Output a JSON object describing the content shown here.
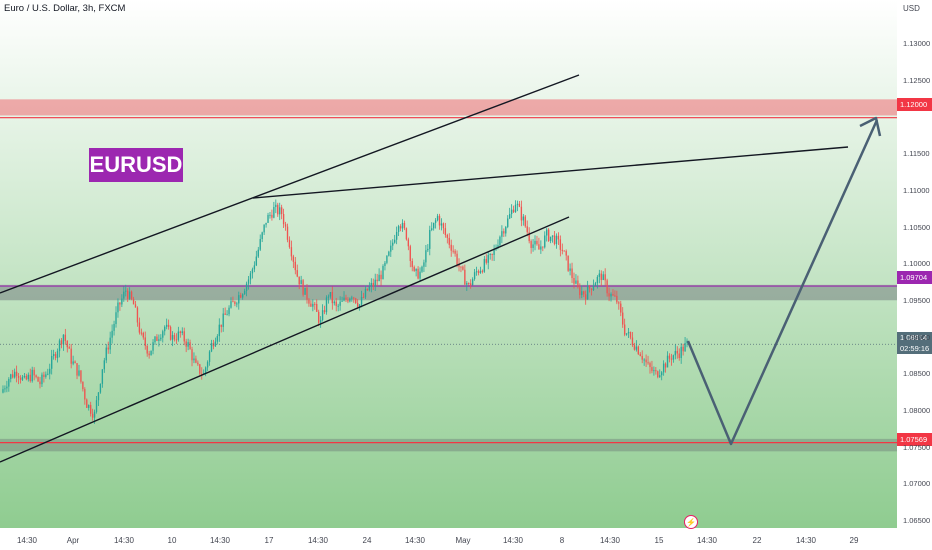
{
  "header": {
    "title": "Euro / U.S. Dollar, 3h, FXCM",
    "currency": "USD"
  },
  "badge": "EURUSD",
  "price_labels": {
    "resistance": "1.12000",
    "mid": "1.09704",
    "current": "1.08914",
    "countdown": "02:59:16",
    "support": "1.07569"
  },
  "colors": {
    "up": "#26a69a",
    "down": "#ef5350",
    "zone_red": "#f23645",
    "zone_purple": "#9c27b0",
    "trend": "#131722",
    "projection": "#4a6074"
  },
  "lightning_icon": "bolt-icon",
  "chart_data": {
    "type": "candlestick",
    "title": "Euro / U.S. Dollar, 3h, FXCM",
    "ylim": [
      1.0635,
      1.1355
    ],
    "y_ticks": [
      "1.13000",
      "1.12500",
      "1.11500",
      "1.11000",
      "1.10500",
      "1.10000",
      "1.09500",
      "1.09000",
      "1.08500",
      "1.08000",
      "1.07500",
      "1.07000",
      "1.06500"
    ],
    "x_ticks": [
      "14:30",
      "Apr",
      "14:30",
      "10",
      "14:30",
      "17",
      "14:30",
      "24",
      "14:30",
      "May",
      "14:30",
      "8",
      "14:30",
      "15",
      "14:30",
      "22",
      "14:30",
      "29"
    ],
    "candle_path": [
      1.0825,
      1.0845,
      1.0855,
      1.084,
      1.085,
      1.0838,
      1.0855,
      1.088,
      1.0905,
      1.087,
      1.085,
      1.081,
      1.0795,
      1.086,
      1.09,
      1.094,
      1.0965,
      1.0945,
      1.09,
      1.088,
      1.09,
      1.0915,
      1.09,
      1.0905,
      1.089,
      1.086,
      1.085,
      1.089,
      1.0915,
      1.0935,
      1.095,
      1.0965,
      1.0985,
      1.102,
      1.106,
      1.1075,
      1.107,
      1.103,
      1.0985,
      1.096,
      1.0945,
      1.092,
      1.096,
      1.094,
      1.095,
      1.096,
      1.0945,
      1.0965,
      1.0975,
      1.099,
      1.102,
      1.106,
      1.104,
      1.0985,
      1.099,
      1.104,
      1.1065,
      1.104,
      1.102,
      1.099,
      1.097,
      1.099,
      1.1,
      1.101,
      1.104,
      1.106,
      1.1085,
      1.106,
      1.103,
      1.102,
      1.104,
      1.1035,
      1.102,
      1.099,
      1.0965,
      1.096,
      1.0975,
      1.0985,
      1.096,
      1.095,
      1.091,
      1.0895,
      1.088,
      1.086,
      1.085,
      1.0862,
      1.0875,
      1.088,
      1.0891
    ],
    "levels": [
      {
        "name": "resistance",
        "from": 1.1203,
        "to": 1.1225,
        "value": 1.12
      },
      {
        "name": "mid",
        "from": 1.0951,
        "to": 1.0972,
        "value": 1.09704
      },
      {
        "name": "support",
        "from": 1.0745,
        "to": 1.0762,
        "value": 1.07569
      }
    ],
    "trendlines": [
      {
        "x1": "2024-03-25",
        "y1": 1.095,
        "x2": "2024-05-06",
        "y2": 1.124
      },
      {
        "x1": "2024-03-25",
        "y1": 1.0727,
        "x2": "2024-05-08",
        "y2": 1.1052
      },
      {
        "x1": "2024-04-15",
        "y1": 1.1078,
        "x2": "2024-05-29",
        "y2": 1.1145
      }
    ],
    "projection": [
      [
        1.0891
      ],
      [
        1.0758
      ],
      [
        1.1186
      ]
    ]
  }
}
